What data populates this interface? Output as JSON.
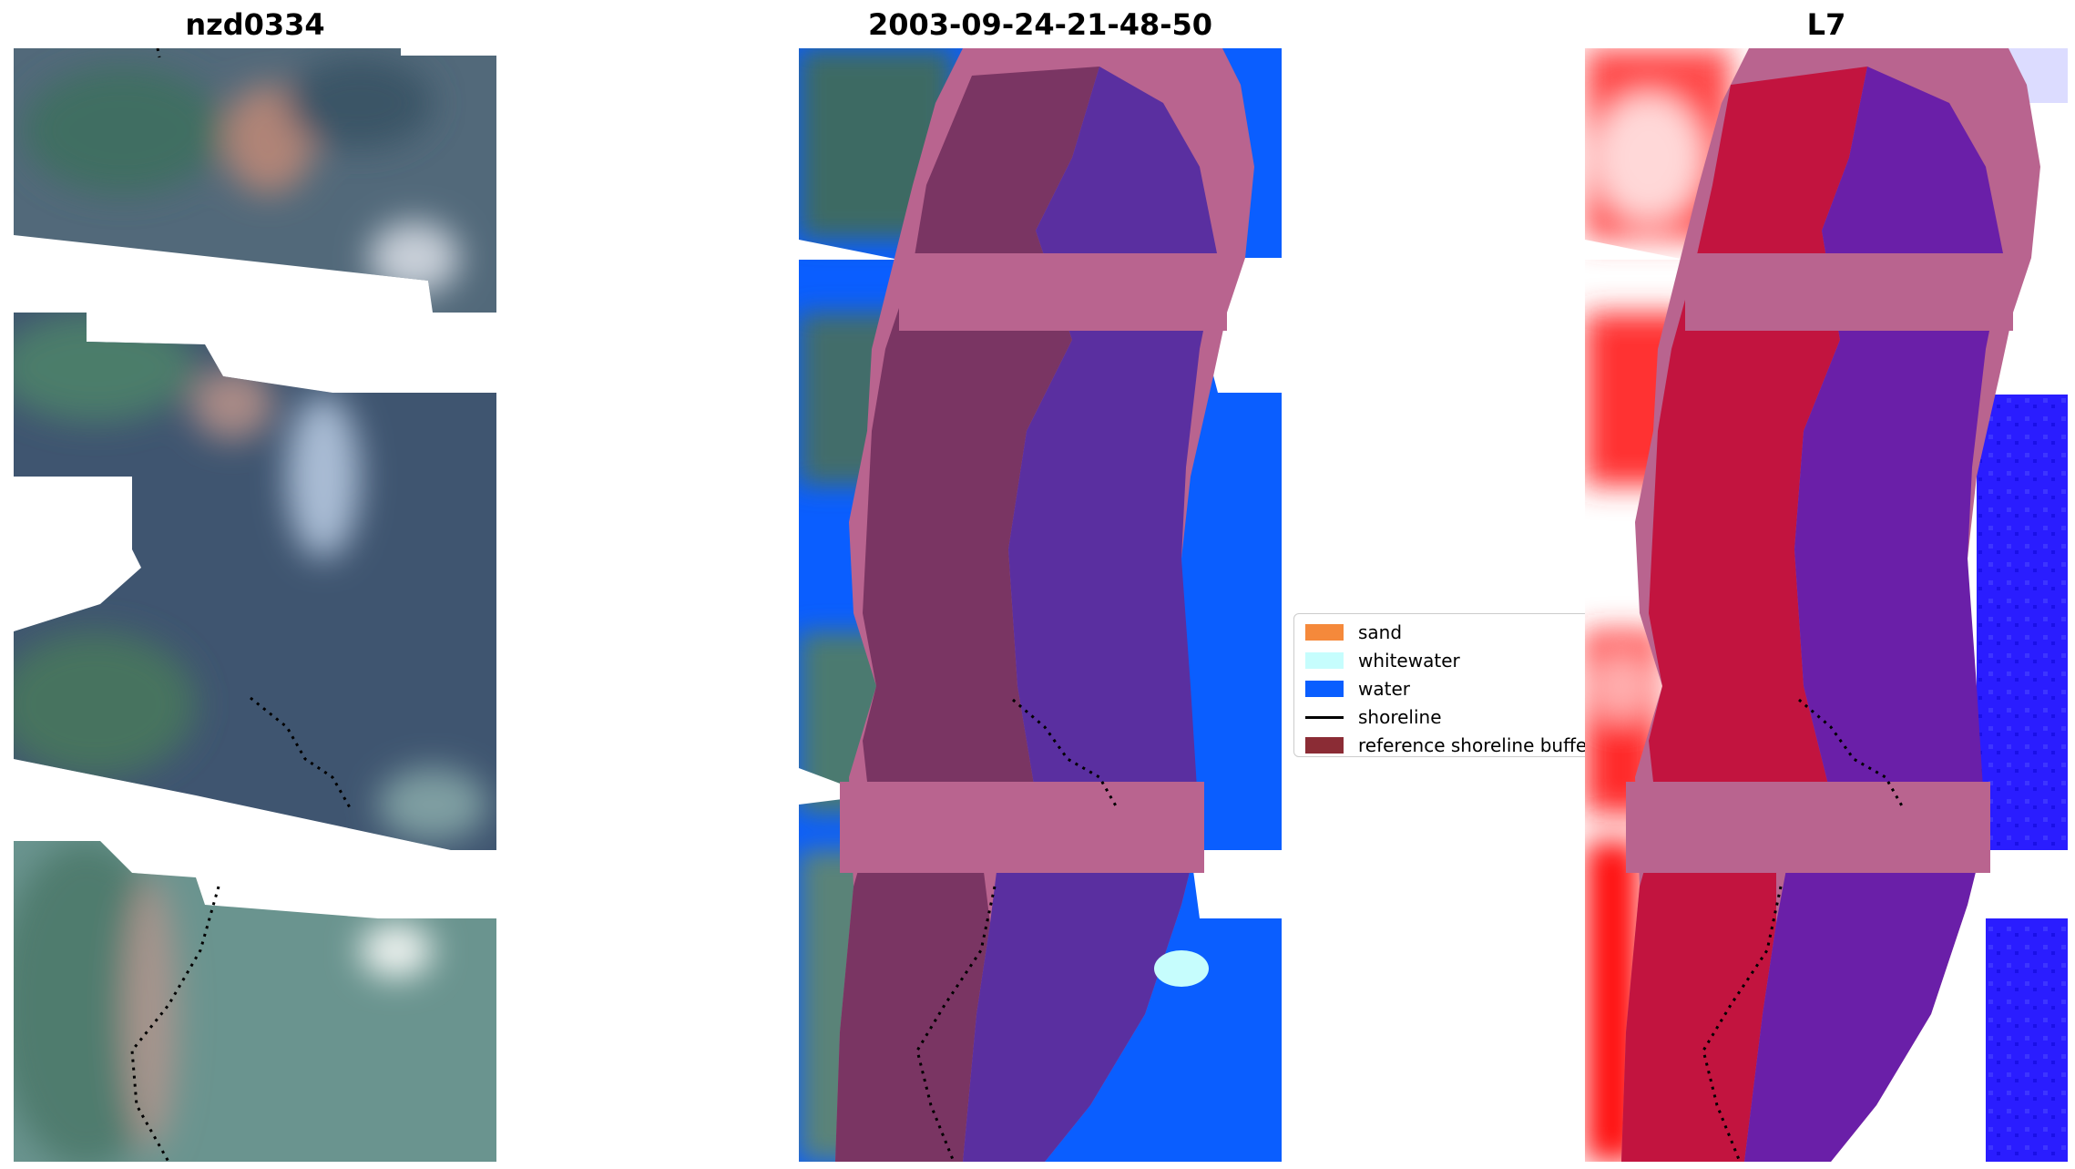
{
  "panels": [
    {
      "title": "nzd0334"
    },
    {
      "title": "2003-09-24-21-48-50"
    },
    {
      "title": "L7"
    }
  ],
  "legend": {
    "items": [
      {
        "label": "sand",
        "color": "#f5893b",
        "kind": "patch"
      },
      {
        "label": "whitewater",
        "color": "#c6fdfd",
        "kind": "patch"
      },
      {
        "label": "water",
        "color": "#0a5eff",
        "kind": "patch"
      },
      {
        "label": "shoreline",
        "color": "#000000",
        "kind": "line"
      },
      {
        "label": "reference shoreline buffer",
        "color": "#8b2c35",
        "kind": "patch"
      }
    ]
  },
  "colors": {
    "land_rgb": "#4e6b7a",
    "buffer": "#b9648f",
    "class_land": "#7a3563",
    "class_water_in_buffer": "#5a2fa0",
    "index_land": "#c2143f",
    "index_water": "#2a1dff"
  }
}
